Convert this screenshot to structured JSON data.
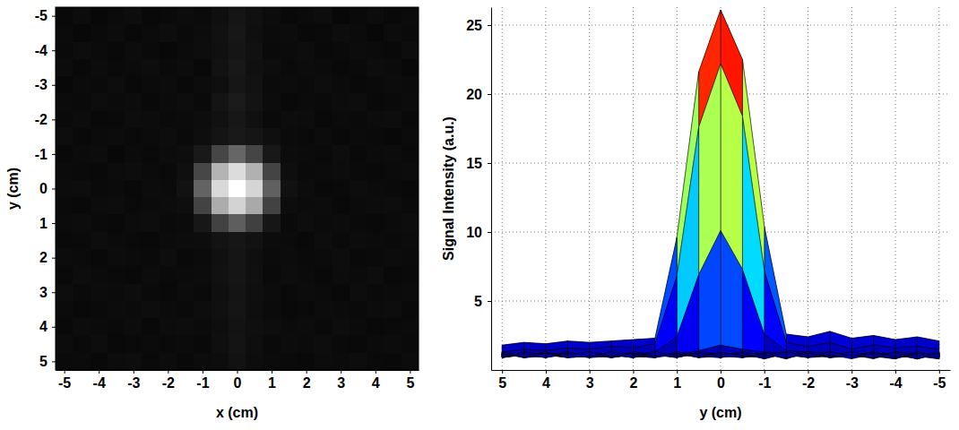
{
  "chart_data": [
    {
      "type": "heatmap",
      "xlabel": "x (cm)",
      "ylabel": "y (cm)",
      "x": [
        -5,
        -4.5,
        -4,
        -3.5,
        -3,
        -2.5,
        -2,
        -1.5,
        -1,
        -0.5,
        0,
        0.5,
        1,
        1.5,
        2,
        2.5,
        3,
        3.5,
        4,
        4.5,
        5
      ],
      "y": [
        -5,
        -4.5,
        -4,
        -3.5,
        -3,
        -2.5,
        -2,
        -1.5,
        -1,
        -0.5,
        0,
        0.5,
        1,
        1.5,
        2,
        2.5,
        3,
        3.5,
        4,
        4.5,
        5
      ],
      "cells": [
        [
          0.9,
          1.2,
          0.8,
          1.1,
          1.3,
          0.9,
          1.0,
          1.2,
          1.1,
          1.5,
          2.1,
          1.6,
          1.2,
          0.9,
          1.1,
          1.3,
          0.8,
          1.0,
          1.2,
          0.9,
          1.1
        ],
        [
          1.1,
          0.8,
          1.0,
          1.2,
          0.9,
          1.1,
          1.3,
          1.0,
          1.2,
          1.7,
          2.4,
          1.5,
          1.1,
          1.2,
          0.9,
          1.0,
          1.3,
          1.1,
          0.8,
          1.2,
          1.0
        ],
        [
          1.0,
          1.3,
          1.1,
          0.9,
          1.2,
          1.0,
          0.8,
          1.1,
          1.3,
          1.6,
          2.2,
          1.7,
          1.0,
          1.1,
          1.3,
          0.9,
          1.0,
          1.2,
          1.1,
          0.9,
          1.3
        ],
        [
          1.2,
          0.9,
          1.2,
          1.0,
          1.1,
          1.3,
          1.0,
          1.2,
          0.9,
          1.8,
          2.5,
          1.6,
          1.3,
          1.0,
          1.2,
          1.1,
          0.9,
          1.0,
          1.3,
          1.1,
          0.8
        ],
        [
          0.8,
          1.1,
          1.0,
          1.3,
          0.9,
          1.1,
          1.2,
          0.9,
          1.2,
          1.5,
          2.3,
          1.8,
          1.1,
          1.2,
          1.0,
          1.3,
          1.1,
          0.9,
          1.0,
          1.2,
          1.1
        ],
        [
          1.1,
          1.0,
          1.3,
          1.1,
          1.2,
          0.9,
          1.1,
          1.3,
          1.0,
          2.0,
          2.8,
          1.9,
          1.2,
          0.9,
          1.1,
          1.0,
          1.2,
          1.3,
          0.9,
          1.0,
          1.2
        ],
        [
          1.0,
          1.2,
          0.9,
          1.0,
          1.3,
          1.2,
          1.0,
          1.1,
          1.3,
          1.7,
          2.4,
          1.6,
          1.0,
          1.3,
          1.2,
          0.9,
          1.1,
          1.0,
          1.2,
          1.3,
          0.9
        ],
        [
          1.3,
          0.9,
          1.1,
          1.2,
          1.0,
          1.1,
          1.3,
          1.0,
          1.4,
          2.0,
          2.6,
          2.1,
          1.5,
          1.1,
          1.0,
          1.2,
          0.9,
          1.1,
          1.0,
          0.8,
          1.1
        ],
        [
          0.9,
          1.1,
          1.2,
          0.8,
          1.1,
          1.0,
          1.2,
          1.3,
          2.6,
          7.2,
          10.4,
          7.1,
          2.5,
          1.2,
          1.1,
          1.0,
          1.3,
          0.9,
          1.1,
          1.2,
          1.0
        ],
        [
          1.1,
          1.0,
          0.9,
          1.2,
          1.3,
          1.1,
          1.0,
          1.5,
          7.3,
          18.4,
          22.5,
          18.1,
          7.0,
          1.4,
          1.0,
          1.1,
          1.2,
          1.0,
          0.9,
          1.1,
          1.2
        ],
        [
          1.2,
          1.3,
          1.0,
          1.1,
          0.9,
          1.2,
          1.1,
          1.8,
          10.1,
          22.2,
          26.1,
          21.8,
          9.8,
          1.7,
          1.2,
          0.9,
          1.0,
          1.3,
          1.1,
          1.0,
          0.9
        ],
        [
          1.0,
          0.9,
          1.2,
          1.3,
          1.0,
          1.1,
          1.2,
          1.4,
          6.9,
          17.6,
          21.6,
          17.3,
          6.8,
          1.3,
          1.1,
          1.2,
          0.9,
          1.1,
          1.2,
          1.3,
          1.0
        ],
        [
          1.1,
          1.2,
          1.0,
          0.9,
          1.2,
          1.3,
          1.0,
          1.1,
          2.4,
          6.8,
          9.6,
          6.6,
          2.3,
          1.0,
          1.3,
          1.1,
          1.2,
          1.0,
          0.9,
          1.1,
          1.3
        ],
        [
          0.9,
          1.0,
          1.3,
          1.1,
          1.0,
          0.9,
          1.1,
          1.2,
          1.3,
          1.9,
          2.3,
          1.8,
          1.2,
          1.1,
          0.9,
          1.3,
          1.0,
          1.2,
          1.1,
          1.0,
          1.2
        ],
        [
          1.2,
          1.1,
          0.9,
          1.2,
          1.1,
          1.0,
          1.3,
          0.9,
          1.1,
          1.6,
          2.2,
          1.5,
          1.1,
          1.2,
          1.0,
          1.1,
          1.3,
          0.9,
          1.0,
          1.2,
          1.1
        ],
        [
          1.0,
          1.3,
          1.1,
          1.0,
          0.9,
          1.2,
          1.0,
          1.1,
          1.2,
          1.7,
          2.1,
          1.6,
          1.0,
          1.3,
          1.1,
          0.9,
          1.2,
          1.1,
          1.3,
          0.9,
          1.0
        ],
        [
          1.3,
          1.0,
          1.2,
          1.1,
          1.3,
          1.0,
          0.9,
          1.2,
          1.0,
          1.5,
          2.0,
          1.5,
          1.2,
          1.0,
          1.2,
          1.1,
          0.9,
          1.3,
          1.0,
          1.1,
          1.2
        ],
        [
          1.1,
          0.9,
          1.0,
          1.2,
          1.1,
          1.3,
          1.1,
          1.0,
          1.3,
          1.6,
          2.1,
          1.4,
          1.1,
          0.9,
          1.0,
          1.2,
          1.1,
          1.0,
          1.2,
          1.3,
          0.9
        ],
        [
          0.9,
          1.2,
          1.1,
          1.0,
          1.2,
          0.9,
          1.2,
          1.3,
          1.1,
          1.4,
          1.9,
          1.5,
          1.3,
          1.1,
          1.2,
          1.0,
          1.3,
          1.1,
          0.9,
          1.0,
          1.1
        ],
        [
          1.2,
          1.0,
          1.3,
          0.9,
          1.0,
          1.1,
          1.0,
          1.1,
          0.9,
          1.5,
          2.0,
          1.4,
          1.0,
          1.2,
          1.1,
          1.3,
          1.0,
          0.9,
          1.1,
          1.2,
          1.0
        ],
        [
          1.0,
          1.1,
          0.9,
          1.2,
          1.3,
          1.0,
          1.2,
          0.9,
          1.2,
          1.3,
          1.8,
          1.3,
          1.1,
          1.0,
          0.9,
          1.2,
          1.1,
          1.3,
          1.0,
          0.9,
          1.2
        ]
      ],
      "color": "gray",
      "color_range": [
        0,
        26.1
      ],
      "xlim": [
        -5.25,
        5.25
      ],
      "ylim": [
        -5.25,
        5.25
      ],
      "xticks": [
        -5,
        -4,
        -3,
        -2,
        -1,
        0,
        1,
        2,
        3,
        4,
        5
      ],
      "yticks": [
        -5,
        -4,
        -3,
        -2,
        -1,
        0,
        1,
        2,
        3,
        4,
        5
      ]
    },
    {
      "type": "surface",
      "xlabel": "y (cm)",
      "ylabel": "Signal Intensity (a.u.)",
      "x": [
        -5,
        -4.5,
        -4,
        -3.5,
        -3,
        -2.5,
        -2,
        -1.5,
        -1,
        -0.5,
        0,
        0.5,
        1,
        1.5,
        2,
        2.5,
        3,
        3.5,
        4,
        4.5,
        5
      ],
      "y": [
        -5,
        -4.5,
        -4,
        -3.5,
        -3,
        -2.5,
        -2,
        -1.5,
        -1,
        -0.5,
        0,
        0.5,
        1,
        1.5,
        2,
        2.5,
        3,
        3.5,
        4,
        4.5,
        5
      ],
      "z": [
        [
          0.9,
          1.2,
          0.8,
          1.1,
          1.3,
          0.9,
          1.0,
          1.2,
          1.1,
          1.5,
          2.1,
          1.6,
          1.2,
          0.9,
          1.1,
          1.3,
          0.8,
          1.0,
          1.2,
          0.9,
          1.1
        ],
        [
          1.1,
          0.8,
          1.0,
          1.2,
          0.9,
          1.1,
          1.3,
          1.0,
          1.2,
          1.7,
          2.4,
          1.5,
          1.1,
          1.2,
          0.9,
          1.0,
          1.3,
          1.1,
          0.8,
          1.2,
          1.0
        ],
        [
          1.0,
          1.3,
          1.1,
          0.9,
          1.2,
          1.0,
          0.8,
          1.1,
          1.3,
          1.6,
          2.2,
          1.7,
          1.0,
          1.1,
          1.3,
          0.9,
          1.0,
          1.2,
          1.1,
          0.9,
          1.3
        ],
        [
          1.2,
          0.9,
          1.2,
          1.0,
          1.1,
          1.3,
          1.0,
          1.2,
          0.9,
          1.8,
          2.5,
          1.6,
          1.3,
          1.0,
          1.2,
          1.1,
          0.9,
          1.0,
          1.3,
          1.1,
          0.8
        ],
        [
          0.8,
          1.1,
          1.0,
          1.3,
          0.9,
          1.1,
          1.2,
          0.9,
          1.2,
          1.5,
          2.3,
          1.8,
          1.1,
          1.2,
          1.0,
          1.3,
          1.1,
          0.9,
          1.0,
          1.2,
          1.1
        ],
        [
          1.1,
          1.0,
          1.3,
          1.1,
          1.2,
          0.9,
          1.1,
          1.3,
          1.0,
          2.0,
          2.8,
          1.9,
          1.2,
          0.9,
          1.1,
          1.0,
          1.2,
          1.3,
          0.9,
          1.0,
          1.2
        ],
        [
          1.0,
          1.2,
          0.9,
          1.0,
          1.3,
          1.2,
          1.0,
          1.1,
          1.3,
          1.7,
          2.4,
          1.6,
          1.0,
          1.3,
          1.2,
          0.9,
          1.1,
          1.0,
          1.2,
          1.3,
          0.9
        ],
        [
          1.3,
          0.9,
          1.1,
          1.2,
          1.0,
          1.1,
          1.3,
          1.0,
          1.4,
          2.0,
          2.6,
          2.1,
          1.5,
          1.1,
          1.0,
          1.2,
          0.9,
          1.1,
          1.0,
          0.8,
          1.1
        ],
        [
          0.9,
          1.1,
          1.2,
          0.8,
          1.1,
          1.0,
          1.2,
          1.3,
          2.6,
          7.2,
          10.4,
          7.1,
          2.5,
          1.2,
          1.1,
          1.0,
          1.3,
          0.9,
          1.1,
          1.2,
          1.0
        ],
        [
          1.1,
          1.0,
          0.9,
          1.2,
          1.3,
          1.1,
          1.0,
          1.5,
          7.3,
          18.4,
          22.5,
          18.1,
          7.0,
          1.4,
          1.0,
          1.1,
          1.2,
          1.0,
          0.9,
          1.1,
          1.2
        ],
        [
          1.2,
          1.3,
          1.0,
          1.1,
          0.9,
          1.2,
          1.1,
          1.8,
          10.1,
          22.2,
          26.1,
          21.8,
          9.8,
          1.7,
          1.2,
          0.9,
          1.0,
          1.3,
          1.1,
          1.0,
          0.9
        ],
        [
          1.0,
          0.9,
          1.2,
          1.3,
          1.0,
          1.1,
          1.2,
          1.4,
          6.9,
          17.6,
          21.6,
          17.3,
          6.8,
          1.3,
          1.1,
          1.2,
          0.9,
          1.1,
          1.2,
          1.3,
          1.0
        ],
        [
          1.1,
          1.2,
          1.0,
          0.9,
          1.2,
          1.3,
          1.0,
          1.1,
          2.4,
          6.8,
          9.6,
          6.6,
          2.3,
          1.0,
          1.3,
          1.1,
          1.2,
          1.0,
          0.9,
          1.1,
          1.3
        ],
        [
          0.9,
          1.0,
          1.3,
          1.1,
          1.0,
          0.9,
          1.1,
          1.2,
          1.3,
          1.9,
          2.3,
          1.8,
          1.2,
          1.1,
          0.9,
          1.3,
          1.0,
          1.2,
          1.1,
          1.0,
          1.2
        ],
        [
          1.2,
          1.1,
          0.9,
          1.2,
          1.1,
          1.0,
          1.3,
          0.9,
          1.1,
          1.6,
          2.2,
          1.5,
          1.1,
          1.2,
          1.0,
          1.1,
          1.3,
          0.9,
          1.0,
          1.2,
          1.1
        ],
        [
          1.0,
          1.3,
          1.1,
          1.0,
          0.9,
          1.2,
          1.0,
          1.1,
          1.2,
          1.7,
          2.1,
          1.6,
          1.0,
          1.3,
          1.1,
          0.9,
          1.2,
          1.1,
          1.3,
          0.9,
          1.0
        ],
        [
          1.3,
          1.0,
          1.2,
          1.1,
          1.3,
          1.0,
          0.9,
          1.2,
          1.0,
          1.5,
          2.0,
          1.5,
          1.2,
          1.0,
          1.2,
          1.1,
          0.9,
          1.3,
          1.0,
          1.1,
          1.2
        ],
        [
          1.1,
          0.9,
          1.0,
          1.2,
          1.1,
          1.3,
          1.1,
          1.0,
          1.3,
          1.6,
          2.1,
          1.4,
          1.1,
          0.9,
          1.0,
          1.2,
          1.1,
          1.0,
          1.2,
          1.3,
          0.9
        ],
        [
          0.9,
          1.2,
          1.1,
          1.0,
          1.2,
          0.9,
          1.2,
          1.3,
          1.1,
          1.4,
          1.9,
          1.5,
          1.3,
          1.1,
          1.2,
          1.0,
          1.3,
          1.1,
          0.9,
          1.0,
          1.1
        ],
        [
          1.2,
          1.0,
          1.3,
          0.9,
          1.0,
          1.1,
          1.0,
          1.1,
          0.9,
          1.5,
          2.0,
          1.4,
          1.0,
          1.2,
          1.1,
          1.3,
          1.0,
          0.9,
          1.1,
          1.2,
          1.0
        ],
        [
          1.0,
          1.1,
          0.9,
          1.2,
          1.3,
          1.0,
          1.2,
          0.9,
          1.2,
          1.3,
          1.8,
          1.3,
          1.1,
          1.0,
          0.9,
          1.2,
          1.1,
          1.3,
          1.0,
          0.9,
          1.2
        ]
      ],
      "color": "jet",
      "color_range": [
        0,
        26.1
      ],
      "xlim": [
        5.25,
        -5.25
      ],
      "ylim": [
        0,
        26.3
      ],
      "xticks": [
        5,
        4,
        3,
        2,
        1,
        0,
        -1,
        -2,
        -3,
        -4,
        -5
      ],
      "yticks": [
        5,
        10,
        15,
        20,
        25
      ],
      "grid": true
    }
  ]
}
